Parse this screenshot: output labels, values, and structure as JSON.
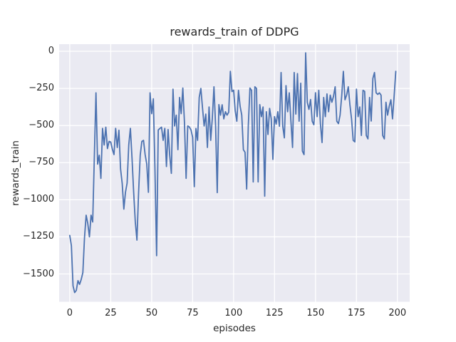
{
  "figure": {
    "title": "rewards_train of DDPG"
  },
  "chart_data": {
    "type": "line",
    "title": "rewards_train of DDPG",
    "xlabel": "episodes",
    "ylabel": "rewards_train",
    "x_ticks": [
      0,
      25,
      50,
      75,
      100,
      125,
      150,
      175,
      200
    ],
    "y_ticks": [
      0,
      -250,
      -500,
      -750,
      -1000,
      -1250,
      -1500
    ],
    "xlim": [
      -6.5,
      207.5
    ],
    "ylim": [
      -1687,
      48
    ],
    "grid": true,
    "legend": "none",
    "colors": {
      "line": "#4c72b0",
      "axes_background": "#eaeaf2",
      "grid": "#ffffff",
      "text": "#262626",
      "figure_background": "#ffffff"
    },
    "series": [
      {
        "name": "rewards_train",
        "x_start": 0,
        "x_step": 1,
        "values": [
          -1240,
          -1310,
          -1580,
          -1625,
          -1610,
          -1545,
          -1570,
          -1537,
          -1490,
          -1256,
          -1104,
          -1160,
          -1250,
          -1104,
          -1150,
          -712,
          -280,
          -760,
          -700,
          -856,
          -519,
          -631,
          -511,
          -655,
          -607,
          -611,
          -660,
          -696,
          -519,
          -648,
          -532,
          -792,
          -890,
          -1063,
          -950,
          -888,
          -631,
          -519,
          -721,
          -950,
          -1150,
          -1272,
          -952,
          -700,
          -607,
          -600,
          -696,
          -760,
          -950,
          -280,
          -420,
          -320,
          -800,
          -1377,
          -530,
          -520,
          -511,
          -600,
          -519,
          -776,
          -527,
          -700,
          -822,
          -255,
          -503,
          -430,
          -663,
          -311,
          -420,
          -247,
          -480,
          -856,
          -503,
          -510,
          -530,
          -580,
          -912,
          -520,
          -600,
          -311,
          -250,
          -380,
          -503,
          -423,
          -648,
          -375,
          -600,
          -450,
          -239,
          -503,
          -952,
          -359,
          -430,
          -360,
          -455,
          -407,
          -430,
          -410,
          -135,
          -271,
          -262,
          -400,
          -471,
          -263,
          -370,
          -430,
          -663,
          -680,
          -928,
          -500,
          -247,
          -263,
          -880,
          -239,
          -250,
          -880,
          -359,
          -440,
          -375,
          -976,
          -407,
          -560,
          -385,
          -455,
          -728,
          -440,
          -490,
          -407,
          -505,
          -143,
          -503,
          -583,
          -231,
          -407,
          -280,
          -471,
          -648,
          -143,
          -423,
          -150,
          -471,
          -215,
          -672,
          -696,
          -10,
          -343,
          -391,
          -325,
          -471,
          -495,
          -279,
          -440,
          -263,
          -487,
          -615,
          -311,
          -440,
          -287,
          -407,
          -295,
          -343,
          -303,
          -239,
          -471,
          -487,
          -430,
          -300,
          -135,
          -327,
          -295,
          -239,
          -360,
          -455,
          -600,
          -610,
          -255,
          -440,
          -375,
          -567,
          -263,
          -270,
          -567,
          -590,
          -311,
          -470,
          -183,
          -143,
          -280,
          -290,
          -280,
          -295,
          -567,
          -590,
          -343,
          -430,
          -370,
          -327,
          -455,
          -300,
          -135
        ]
      }
    ]
  }
}
